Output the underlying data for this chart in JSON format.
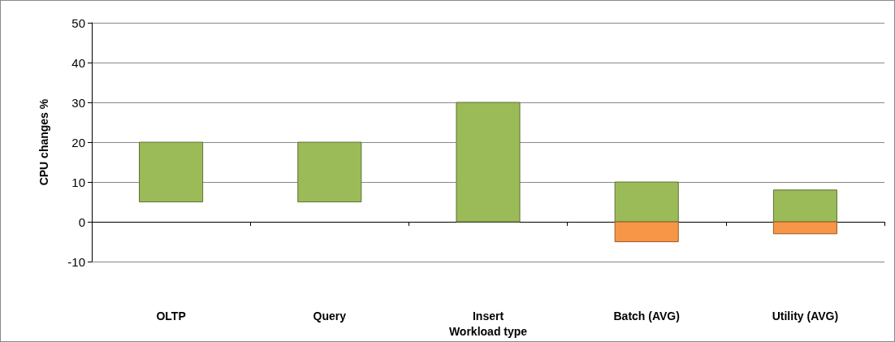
{
  "chart_data": {
    "type": "bar",
    "xlabel": "Workload type",
    "ylabel": "CPU changes %",
    "categories": [
      "OLTP",
      "Query",
      "Insert",
      "Batch (AVG)",
      "Utility (AVG)"
    ],
    "series": [
      {
        "color": "#9bbb59",
        "values": [
          15,
          15,
          30,
          10,
          8
        ],
        "base": [
          5,
          5,
          0,
          0,
          0
        ]
      },
      {
        "color": "#f79646",
        "values": [
          null,
          null,
          null,
          5,
          3
        ],
        "base": [
          null,
          null,
          null,
          -5,
          -3
        ]
      }
    ],
    "ylim": [
      -10,
      50
    ],
    "yticks": [
      -10,
      0,
      10,
      20,
      30,
      40,
      50
    ],
    "grid": "y"
  }
}
